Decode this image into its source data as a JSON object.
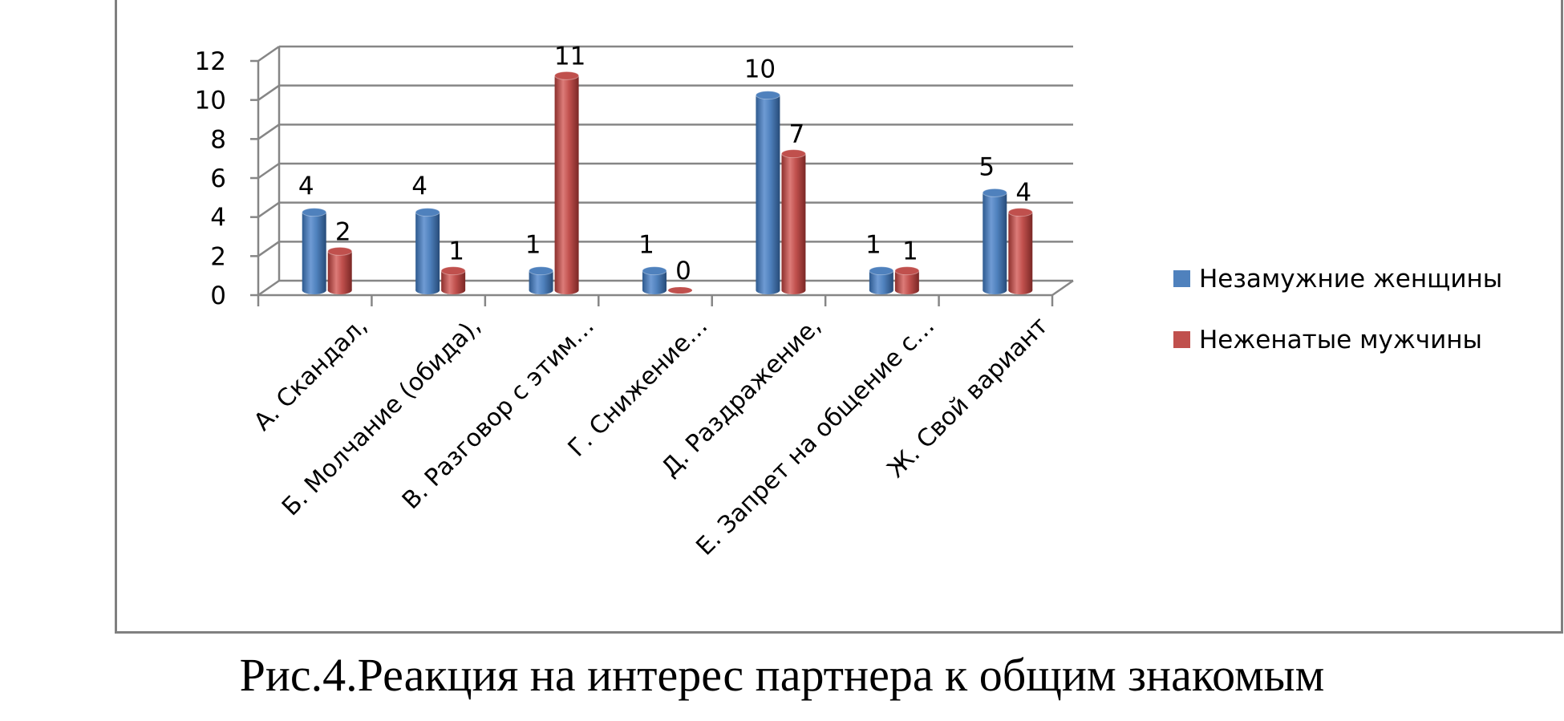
{
  "caption": "Рис.4.Реакция на интерес партнера к общим знакомым",
  "chart_data": {
    "type": "bar",
    "style": "3d-cylinder",
    "categories": [
      "А. Скандал,",
      "Б. Молчание (обида),",
      "В. Разговор с этим…",
      "Г. Снижение…",
      "Д. Раздражение,",
      "Е. Запрет на общение с…",
      "Ж. Свой вариант"
    ],
    "series": [
      {
        "name": "Незамужние женщины",
        "color": "#4f81bd",
        "values": [
          4,
          4,
          1,
          1,
          10,
          1,
          5
        ]
      },
      {
        "name": "Неженатые мужчины",
        "color": "#c0504d",
        "values": [
          2,
          1,
          11,
          0,
          7,
          1,
          4
        ]
      }
    ],
    "y_ticks": [
      "0",
      "2",
      "4",
      "6",
      "8",
      "10",
      "12"
    ],
    "ylim": [
      0,
      12
    ],
    "grid": true,
    "data_labels": true,
    "legend_position": "right"
  }
}
